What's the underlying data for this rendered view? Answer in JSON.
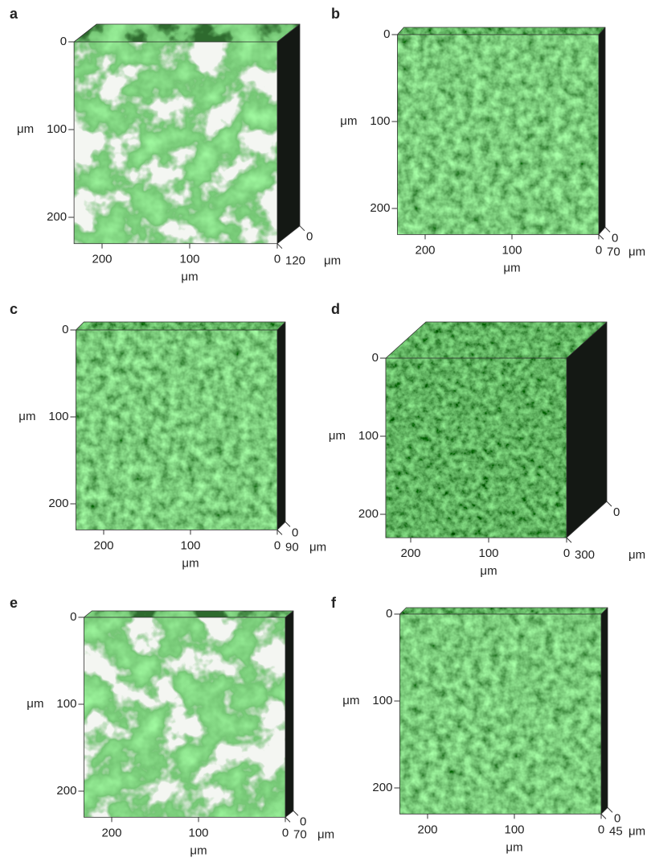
{
  "panels": [
    {
      "label": "a",
      "y_axis": {
        "unit": "μm",
        "ticks": [
          0,
          100,
          200
        ]
      },
      "x_axis": {
        "unit": "μm",
        "ticks": [
          200,
          100,
          0
        ]
      },
      "z_axis": {
        "unit": "μm",
        "ticks": [
          0,
          120
        ]
      }
    },
    {
      "label": "b",
      "y_axis": {
        "unit": "μm",
        "ticks": [
          0,
          100,
          200
        ]
      },
      "x_axis": {
        "unit": "μm",
        "ticks": [
          200,
          100,
          0
        ]
      },
      "z_axis": {
        "unit": "μm",
        "ticks": [
          0,
          70
        ]
      }
    },
    {
      "label": "c",
      "y_axis": {
        "unit": "μm",
        "ticks": [
          0,
          100,
          200
        ]
      },
      "x_axis": {
        "unit": "μm",
        "ticks": [
          200,
          100,
          0
        ]
      },
      "z_axis": {
        "unit": "μm",
        "ticks": [
          0,
          90
        ]
      }
    },
    {
      "label": "d",
      "y_axis": {
        "unit": "μm",
        "ticks": [
          0,
          100,
          200
        ]
      },
      "x_axis": {
        "unit": "μm",
        "ticks": [
          200,
          100,
          0
        ]
      },
      "z_axis": {
        "unit": "μm",
        "ticks": [
          0,
          300
        ]
      }
    },
    {
      "label": "e",
      "y_axis": {
        "unit": "μm",
        "ticks": [
          0,
          100,
          200
        ]
      },
      "x_axis": {
        "unit": "μm",
        "ticks": [
          200,
          100,
          0
        ]
      },
      "z_axis": {
        "unit": "μm",
        "ticks": [
          0,
          70
        ]
      }
    },
    {
      "label": "f",
      "y_axis": {
        "unit": "μm",
        "ticks": [
          0,
          100,
          200
        ]
      },
      "x_axis": {
        "unit": "μm",
        "ticks": [
          200,
          100,
          0
        ]
      },
      "z_axis": {
        "unit": "μm",
        "ticks": [
          0,
          45
        ]
      }
    }
  ]
}
